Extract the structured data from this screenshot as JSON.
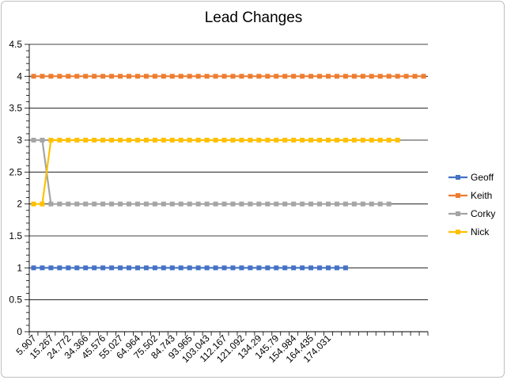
{
  "chart_data": {
    "type": "line",
    "title": "Lead Changes",
    "xlabel": "",
    "ylabel": "",
    "ylim": [
      0,
      4.5
    ],
    "yticks": [
      "0",
      "0.5",
      "1",
      "1.5",
      "2",
      "2.5",
      "3",
      "3.5",
      "4",
      "4.5"
    ],
    "ytick_values": [
      0,
      0.5,
      1,
      1.5,
      2,
      2.5,
      3,
      3.5,
      4,
      4.5
    ],
    "category_count": 46,
    "x_tick_labels": [
      "5.907",
      "15.267",
      "24.772",
      "34.366",
      "45.576",
      "55.027",
      "64.964",
      "75.502",
      "84.743",
      "93.965",
      "103.043",
      "112.167",
      "121.092",
      "134.29",
      "145.79",
      "154.984",
      "164.435",
      "174.031"
    ],
    "x_tick_label_every": 2,
    "grid": "horizontal",
    "legend_position": "right",
    "series": [
      {
        "name": "Geoff",
        "color": "#4472c4",
        "values": [
          1,
          1,
          1,
          1,
          1,
          1,
          1,
          1,
          1,
          1,
          1,
          1,
          1,
          1,
          1,
          1,
          1,
          1,
          1,
          1,
          1,
          1,
          1,
          1,
          1,
          1,
          1,
          1,
          1,
          1,
          1,
          1,
          1,
          1,
          1,
          1,
          1
        ]
      },
      {
        "name": "Keith",
        "color": "#ed7d31",
        "values": [
          4,
          4,
          4,
          4,
          4,
          4,
          4,
          4,
          4,
          4,
          4,
          4,
          4,
          4,
          4,
          4,
          4,
          4,
          4,
          4,
          4,
          4,
          4,
          4,
          4,
          4,
          4,
          4,
          4,
          4,
          4,
          4,
          4,
          4,
          4,
          4,
          4,
          4,
          4,
          4,
          4,
          4,
          4,
          4,
          4,
          4
        ]
      },
      {
        "name": "Corky",
        "color": "#a5a5a5",
        "values": [
          3,
          3,
          2,
          2,
          2,
          2,
          2,
          2,
          2,
          2,
          2,
          2,
          2,
          2,
          2,
          2,
          2,
          2,
          2,
          2,
          2,
          2,
          2,
          2,
          2,
          2,
          2,
          2,
          2,
          2,
          2,
          2,
          2,
          2,
          2,
          2,
          2,
          2,
          2,
          2,
          2,
          2
        ]
      },
      {
        "name": "Nick",
        "color": "#ffc000",
        "values": [
          2,
          2,
          3,
          3,
          3,
          3,
          3,
          3,
          3,
          3,
          3,
          3,
          3,
          3,
          3,
          3,
          3,
          3,
          3,
          3,
          3,
          3,
          3,
          3,
          3,
          3,
          3,
          3,
          3,
          3,
          3,
          3,
          3,
          3,
          3,
          3,
          3,
          3,
          3,
          3,
          3,
          3,
          3
        ]
      }
    ]
  }
}
